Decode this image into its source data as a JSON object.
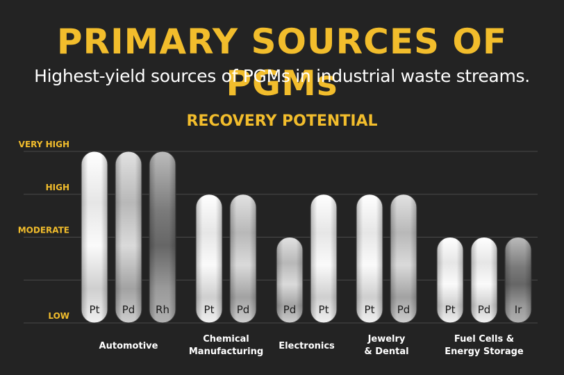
{
  "header": {
    "title": "PRIMARY SOURCES OF PGMs",
    "subtitle": "Highest-yield sources of PGMs in industrial waste streams."
  },
  "colors": {
    "background": "#232323",
    "accent": "#f2bd2c",
    "text": "#ffffff",
    "gridline": "#4a4a4a"
  },
  "chart_data": {
    "type": "bar",
    "title": "RECOVERY POTENTIAL",
    "y_levels": [
      "LOW",
      "MODERATE",
      "HIGH",
      "VERY HIGH"
    ],
    "ylim": [
      0,
      4
    ],
    "groups": [
      {
        "label_lines": [
          "Automotive"
        ],
        "bars": [
          {
            "metal": "Pt",
            "value": 4,
            "shade": "light"
          },
          {
            "metal": "Pd",
            "value": 4,
            "shade": "mid"
          },
          {
            "metal": "Rh",
            "value": 4,
            "shade": "dark"
          }
        ]
      },
      {
        "label_lines": [
          "Chemical",
          "Manufacturing"
        ],
        "bars": [
          {
            "metal": "Pt",
            "value": 3,
            "shade": "light"
          },
          {
            "metal": "Pd",
            "value": 3,
            "shade": "mid"
          }
        ]
      },
      {
        "label_lines": [
          "Electronics"
        ],
        "bars": [
          {
            "metal": "Pd",
            "value": 2,
            "shade": "mid"
          },
          {
            "metal": "Pt",
            "value": 3,
            "shade": "light"
          }
        ]
      },
      {
        "label_lines": [
          "Jewelry",
          "& Dental"
        ],
        "bars": [
          {
            "metal": "Pt",
            "value": 3,
            "shade": "light"
          },
          {
            "metal": "Pd",
            "value": 3,
            "shade": "mid"
          }
        ]
      },
      {
        "label_lines": [
          "Fuel Cells &",
          "Energy Storage"
        ],
        "bars": [
          {
            "metal": "Pt",
            "value": 2,
            "shade": "light"
          },
          {
            "metal": "Pd",
            "value": 2,
            "shade": "light"
          },
          {
            "metal": "Ir",
            "value": 2,
            "shade": "dark"
          }
        ]
      }
    ]
  }
}
